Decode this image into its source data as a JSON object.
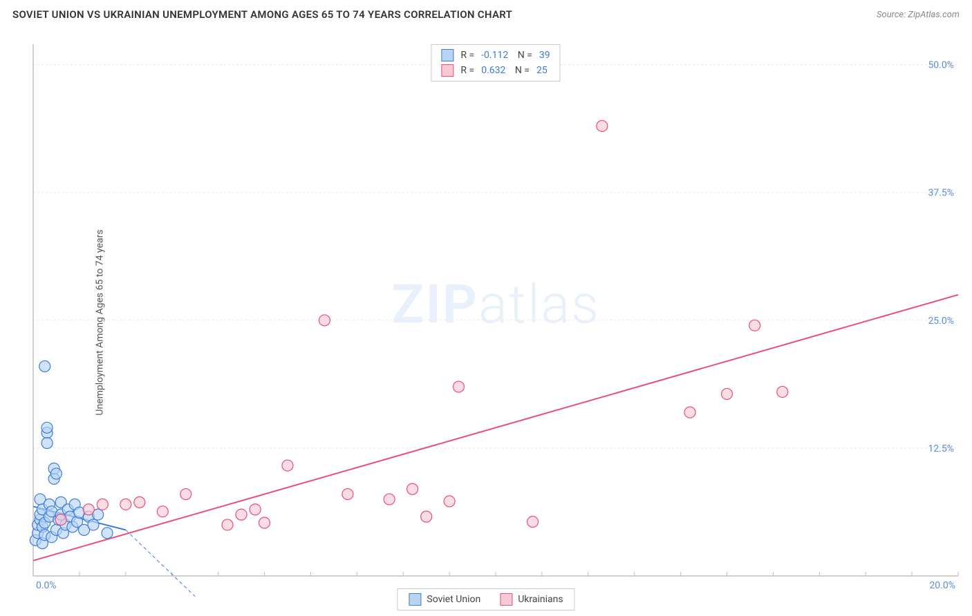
{
  "header": {
    "title": "SOVIET UNION VS UKRAINIAN UNEMPLOYMENT AMONG AGES 65 TO 74 YEARS CORRELATION CHART",
    "source_label": "Source: ZipAtlas.com"
  },
  "watermark": {
    "part1": "ZIP",
    "part2": "atlas"
  },
  "chart": {
    "type": "scatter",
    "ylabel": "Unemployment Among Ages 65 to 74 years",
    "xlim": [
      0,
      20
    ],
    "ylim": [
      0,
      52
    ],
    "xtick_step": 1,
    "ytick_step": 12.5,
    "x_tick_label_min": "0.0%",
    "x_tick_label_max": "20.0%",
    "y_tick_labels": [
      "12.5%",
      "25.0%",
      "37.5%",
      "50.0%"
    ],
    "grid_color": "#e8e8e8",
    "axis_color": "#bfbfbf",
    "background_color": "#ffffff",
    "label_fontsize": 14,
    "marker_radius": 8,
    "marker_opacity": 0.65,
    "line_width": 2,
    "series": [
      {
        "name": "Soviet Union",
        "fill_color": "#b9d4f2",
        "stroke_color": "#3b7dd8",
        "R": "-0.112",
        "N": "39",
        "trend": {
          "x1": 0,
          "y1": 6.8,
          "x2": 2,
          "y2": 4.5,
          "dash_x2": 3.5,
          "dash_y2": -2
        },
        "points": [
          [
            0.05,
            3.5
          ],
          [
            0.1,
            4.2
          ],
          [
            0.1,
            5.0
          ],
          [
            0.15,
            5.5
          ],
          [
            0.15,
            6.0
          ],
          [
            0.15,
            7.5
          ],
          [
            0.2,
            3.2
          ],
          [
            0.2,
            4.8
          ],
          [
            0.2,
            6.5
          ],
          [
            0.25,
            4.0
          ],
          [
            0.25,
            5.2
          ],
          [
            0.3,
            14.0
          ],
          [
            0.3,
            14.5
          ],
          [
            0.3,
            13.0
          ],
          [
            0.35,
            5.8
          ],
          [
            0.35,
            7.0
          ],
          [
            0.4,
            3.8
          ],
          [
            0.4,
            6.3
          ],
          [
            0.45,
            9.5
          ],
          [
            0.45,
            10.5
          ],
          [
            0.5,
            10.0
          ],
          [
            0.5,
            4.5
          ],
          [
            0.55,
            5.5
          ],
          [
            0.6,
            6.0
          ],
          [
            0.6,
            7.2
          ],
          [
            0.65,
            4.2
          ],
          [
            0.7,
            5.0
          ],
          [
            0.75,
            6.5
          ],
          [
            0.8,
            5.8
          ],
          [
            0.85,
            4.8
          ],
          [
            0.9,
            7.0
          ],
          [
            0.95,
            5.3
          ],
          [
            1.0,
            6.2
          ],
          [
            1.1,
            4.5
          ],
          [
            1.2,
            5.8
          ],
          [
            1.3,
            5.0
          ],
          [
            1.4,
            6.0
          ],
          [
            1.6,
            4.2
          ],
          [
            0.25,
            20.5
          ]
        ]
      },
      {
        "name": "Ukrainians",
        "fill_color": "#f7c9d6",
        "stroke_color": "#e94d7a",
        "R": "0.632",
        "N": "25",
        "trend": {
          "x1": 0,
          "y1": 1.5,
          "x2": 20,
          "y2": 27.5
        },
        "points": [
          [
            0.6,
            5.5
          ],
          [
            1.2,
            6.5
          ],
          [
            1.5,
            7.0
          ],
          [
            2.0,
            7.0
          ],
          [
            2.3,
            7.2
          ],
          [
            2.8,
            6.3
          ],
          [
            3.3,
            8.0
          ],
          [
            4.2,
            5.0
          ],
          [
            4.5,
            6.0
          ],
          [
            4.8,
            6.5
          ],
          [
            5.0,
            5.2
          ],
          [
            5.5,
            10.8
          ],
          [
            6.3,
            25.0
          ],
          [
            6.8,
            8.0
          ],
          [
            7.7,
            7.5
          ],
          [
            8.2,
            8.5
          ],
          [
            8.5,
            5.8
          ],
          [
            9.0,
            7.3
          ],
          [
            9.2,
            18.5
          ],
          [
            10.8,
            5.3
          ],
          [
            12.3,
            44.0
          ],
          [
            14.2,
            16.0
          ],
          [
            15.0,
            17.8
          ],
          [
            15.6,
            24.5
          ],
          [
            16.2,
            18.0
          ]
        ]
      }
    ]
  },
  "legend": {
    "series1_label": "Soviet Union",
    "series2_label": "Ukrainians"
  }
}
